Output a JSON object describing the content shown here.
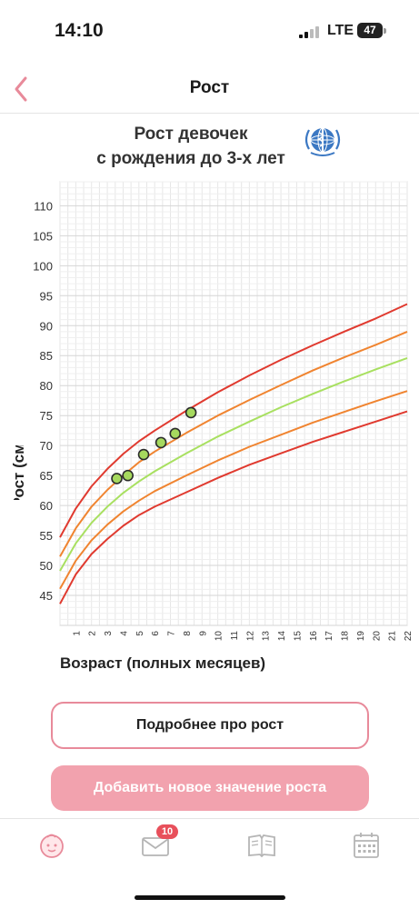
{
  "status_bar": {
    "time": "14:10",
    "network": "LTE",
    "battery": "47"
  },
  "nav": {
    "title": "Рост"
  },
  "chart_header": {
    "line1": "Рост девочек",
    "line2": "с рождения до 3-х лет"
  },
  "chart_data": {
    "type": "line",
    "title": "Рост девочек с рождения до 3-х лет",
    "xlabel": "Возраст (полных месяцев)",
    "ylabel": "Рост (см)",
    "xlim": [
      0,
      22
    ],
    "ylim": [
      40,
      114
    ],
    "yticks": [
      45,
      50,
      55,
      60,
      65,
      70,
      75,
      80,
      85,
      90,
      95,
      100,
      105,
      110
    ],
    "xticks": [
      "1",
      "2",
      "3",
      "4",
      "5",
      "6",
      "7",
      "8",
      "9",
      "10",
      "11",
      "12",
      "13",
      "14",
      "15",
      "16",
      "17",
      "18",
      "19",
      "20",
      "21",
      "22"
    ],
    "grid": true,
    "x": [
      0,
      1,
      2,
      3,
      4,
      5,
      6,
      8,
      10,
      12,
      14,
      16,
      18,
      20,
      22
    ],
    "series": [
      {
        "color": "#e03a2f",
        "values": [
          54.7,
          59.5,
          63.2,
          66.1,
          68.6,
          70.7,
          72.5,
          75.8,
          78.9,
          81.7,
          84.3,
          86.7,
          89.0,
          91.2,
          93.6
        ]
      },
      {
        "color": "#f08430",
        "values": [
          51.5,
          56.2,
          59.8,
          62.6,
          65.0,
          67.2,
          69.0,
          72.1,
          75.0,
          77.6,
          80.1,
          82.5,
          84.7,
          86.8,
          89.0
        ]
      },
      {
        "color": "#a8e060",
        "values": [
          49.1,
          53.7,
          57.1,
          59.8,
          62.1,
          64.0,
          65.7,
          68.7,
          71.5,
          74.0,
          76.4,
          78.6,
          80.7,
          82.7,
          84.6
        ]
      },
      {
        "color": "#f08430",
        "values": [
          46.1,
          50.8,
          54.2,
          56.8,
          59.0,
          60.8,
          62.4,
          65.0,
          67.5,
          69.8,
          71.8,
          73.8,
          75.6,
          77.4,
          79.1
        ]
      },
      {
        "color": "#e03a2f",
        "values": [
          43.6,
          48.5,
          51.9,
          54.4,
          56.6,
          58.4,
          59.8,
          62.2,
          64.6,
          66.8,
          68.7,
          70.6,
          72.3,
          74.0,
          75.7
        ]
      }
    ],
    "measurements": [
      {
        "x": 3.6,
        "y": 64.5
      },
      {
        "x": 4.3,
        "y": 65.0
      },
      {
        "x": 5.3,
        "y": 68.5
      },
      {
        "x": 6.4,
        "y": 70.5
      },
      {
        "x": 7.3,
        "y": 72.0
      },
      {
        "x": 8.3,
        "y": 75.5
      }
    ]
  },
  "buttons": {
    "more_info": "Подробнее про рост",
    "add_value": "Добавить новое значение роста"
  },
  "tabs": {
    "messages_badge": "10"
  },
  "colors": {
    "accent": "#e88a9a",
    "primary_button": "#f2a2ae",
    "badge": "#e8505b"
  }
}
